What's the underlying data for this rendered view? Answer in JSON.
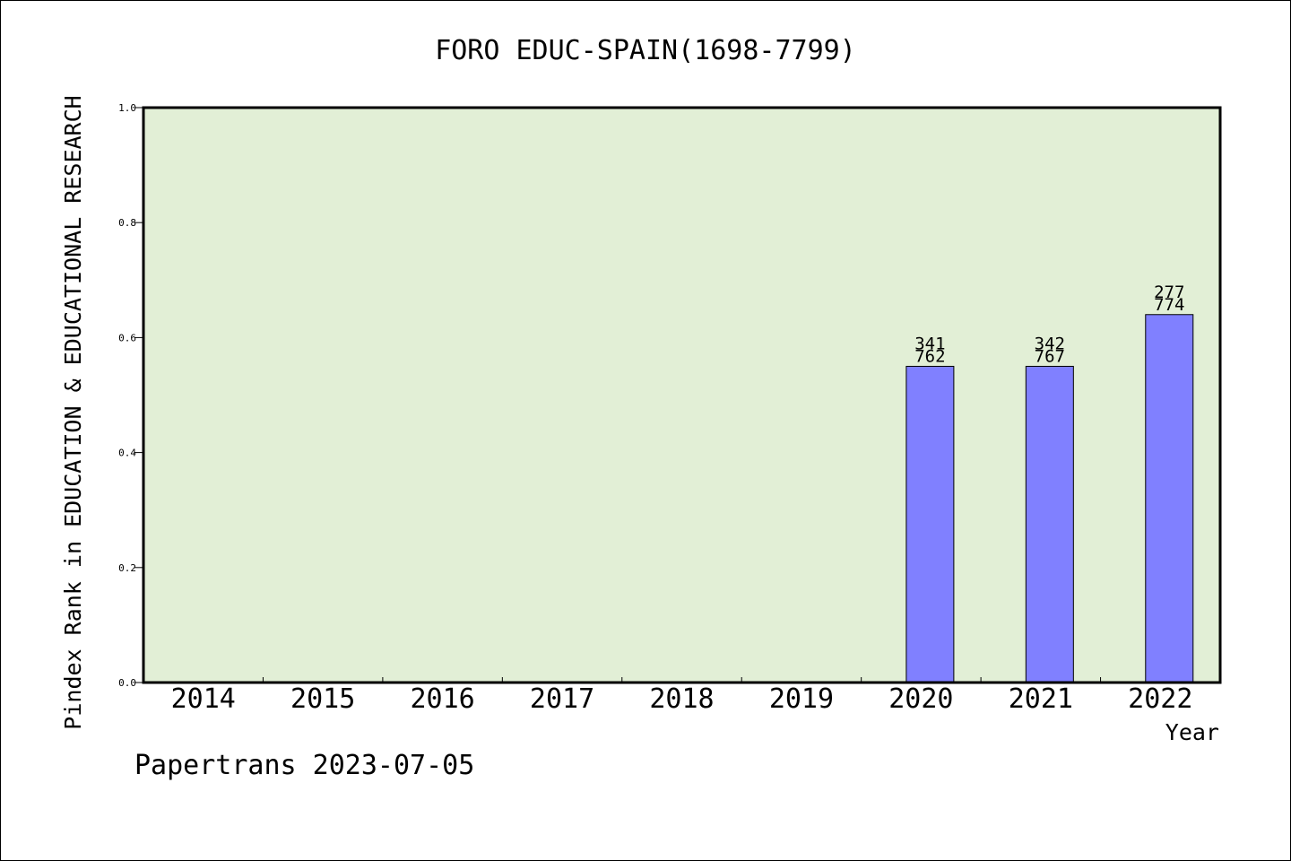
{
  "chart_data": {
    "type": "bar",
    "title": "FORO EDUC-SPAIN(1698-7799)",
    "xlabel": "Year",
    "ylabel": "Pindex Rank in EDUCATION & EDUCATIONAL RESEARCH",
    "categories": [
      "2014",
      "2015",
      "2016",
      "2017",
      "2018",
      "2019",
      "2020",
      "2021",
      "2022"
    ],
    "values": [
      null,
      null,
      null,
      null,
      null,
      null,
      0.55,
      0.55,
      0.64
    ],
    "bar_labels": [
      null,
      null,
      null,
      null,
      null,
      null,
      [
        "341",
        "762"
      ],
      [
        "342",
        "767"
      ],
      [
        "277",
        "774"
      ]
    ],
    "ylim": [
      0.0,
      1.0
    ],
    "yticks": [
      "0.0",
      "0.2",
      "0.4",
      "0.6",
      "0.8",
      "1.0"
    ],
    "grid": false,
    "colors": {
      "plot_background": "#e2efd6",
      "bar_fill": "#8080ff",
      "bar_edge": "#000000"
    },
    "footer": "Papertrans 2023-07-05"
  }
}
